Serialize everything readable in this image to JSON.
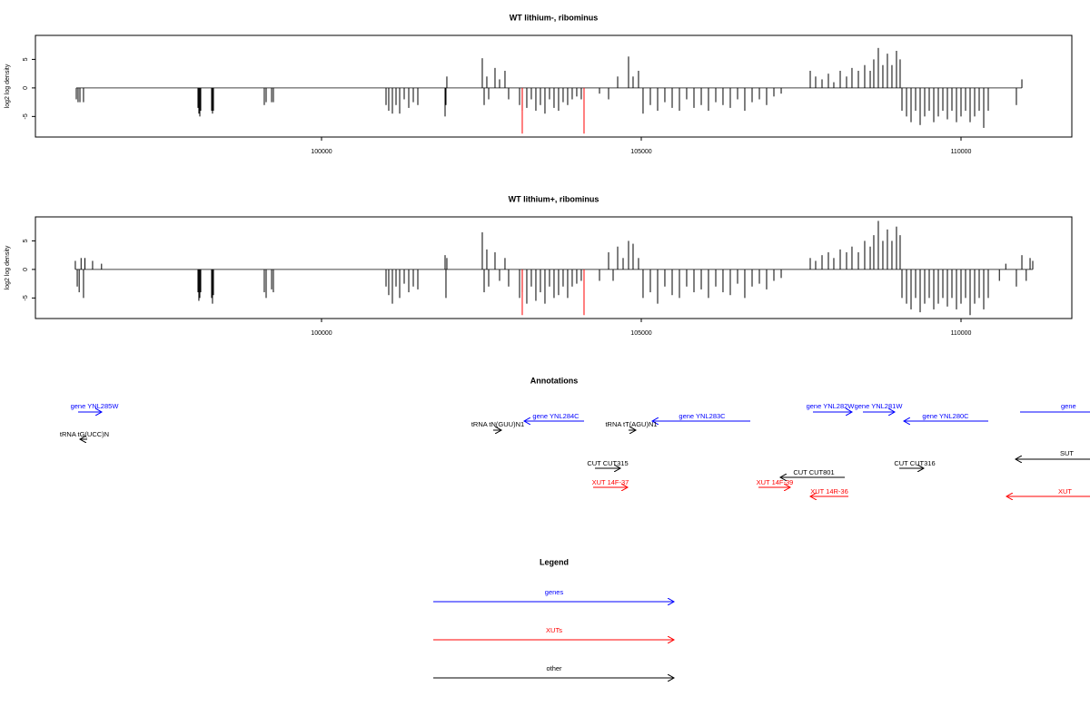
{
  "chart_data": [
    {
      "type": "bar",
      "title": "WT lithium-, ribominus",
      "y_label": "log2 log density",
      "xlim": [
        95526,
        111733
      ],
      "ylim": [
        -8.6,
        9.2
      ],
      "xticks": [
        100000,
        105000,
        110000
      ],
      "yticks": [
        -5,
        0,
        5
      ],
      "series": [
        {
          "color": "#000000",
          "x": [
            96165,
            96193,
            96222,
            96278,
            98068,
            98082,
            98097,
            98111,
            98281,
            98295,
            98310,
            99105,
            99134,
            99219,
            99247,
            101009,
            101051,
            101108,
            101165,
            101222,
            101293,
            101364,
            101435,
            101506,
            101932,
            101946,
            101960,
            102514,
            102543,
            102585,
            102614,
            102713,
            102784,
            102869,
            102926,
            103097,
            103139,
            103210,
            103281,
            103352,
            103423,
            103494,
            103565,
            103636,
            103707,
            103778,
            103849,
            103920,
            103991,
            104062,
            104347,
            104489,
            104631,
            104801,
            104872,
            104957,
            105028,
            105142,
            105256,
            105369,
            105483,
            105597,
            105710,
            105824,
            105938,
            106051,
            106165,
            106278,
            106392,
            106506,
            106619,
            106733,
            106847,
            106960,
            107074,
            107188,
            107642,
            107727,
            107827,
            107926,
            108011,
            108111,
            108210,
            108295,
            108395,
            108494,
            108580,
            108636,
            108707,
            108778,
            108849,
            108920,
            108991,
            109048,
            109077,
            109148,
            109219,
            109290,
            109361,
            109432,
            109503,
            109574,
            109645,
            109716,
            109787,
            109858,
            109929,
            110000,
            110071,
            110142,
            110213,
            110284,
            110355,
            110426,
            110866,
            110952
          ],
          "values": [
            -2,
            -2.5,
            -2.5,
            -2.5,
            -3.5,
            -4.5,
            -5,
            -4,
            -4,
            -4.5,
            -4,
            -3,
            -2.5,
            -2.5,
            -2.5,
            -3,
            -4,
            -4.5,
            -3,
            -4.5,
            -2,
            -3.5,
            -2.5,
            -3,
            -5,
            -3,
            2,
            5.2,
            -3,
            2,
            -2,
            3.5,
            1.5,
            3,
            -2,
            -3,
            -4,
            -3.5,
            -2,
            -4,
            -3,
            -4.5,
            -2,
            -3.5,
            -4,
            -2.5,
            -3,
            -2,
            -1.5,
            -2,
            -1,
            -2,
            2,
            5.5,
            2,
            3,
            -4.5,
            -3,
            -4,
            -2.5,
            -3.5,
            -4,
            -2,
            -3.5,
            -3,
            -4,
            -2.5,
            -3,
            -3.5,
            -2,
            -4,
            -2.5,
            -2,
            -3,
            -1.5,
            -1,
            3,
            2,
            1.5,
            2.5,
            1,
            3,
            2,
            3.5,
            3,
            4,
            3,
            5,
            7,
            4,
            6,
            4,
            6.5,
            5,
            -4,
            -5,
            -6,
            -4,
            -6.5,
            -5,
            -4,
            -6,
            -5,
            -4,
            -5.5,
            -4,
            -6,
            -5,
            -4,
            -6,
            -5,
            -4,
            -7,
            -4,
            -3,
            1.5
          ]
        },
        {
          "color": "#ff0000",
          "x": [
            103139,
            104105
          ],
          "values": [
            -8,
            -8
          ]
        }
      ]
    },
    {
      "type": "bar",
      "title": "WT lithium+, ribominus",
      "y_label": "log2 log density",
      "xlim": [
        95526,
        111733
      ],
      "ylim": [
        -8.6,
        9.2
      ],
      "xticks": [
        100000,
        105000,
        110000
      ],
      "yticks": [
        -5,
        0,
        5
      ],
      "series": [
        {
          "color": "#000000",
          "x": [
            96150,
            96180,
            96210,
            96240,
            96278,
            96300,
            96420,
            96560,
            98068,
            98082,
            98097,
            98111,
            98281,
            98295,
            98310,
            99105,
            99134,
            99219,
            99247,
            101009,
            101051,
            101108,
            101165,
            101222,
            101293,
            101364,
            101435,
            101506,
            101932,
            101946,
            101960,
            102514,
            102543,
            102585,
            102614,
            102713,
            102784,
            102869,
            102926,
            103097,
            103139,
            103210,
            103281,
            103352,
            103423,
            103494,
            103565,
            103636,
            103707,
            103778,
            103849,
            103920,
            103991,
            104062,
            104347,
            104489,
            104560,
            104631,
            104716,
            104801,
            104872,
            104957,
            105028,
            105142,
            105256,
            105369,
            105483,
            105597,
            105710,
            105824,
            105938,
            106051,
            106165,
            106278,
            106392,
            106506,
            106619,
            106733,
            106847,
            106960,
            107074,
            107188,
            107642,
            107727,
            107827,
            107926,
            108011,
            108111,
            108210,
            108295,
            108395,
            108494,
            108580,
            108636,
            108707,
            108778,
            108849,
            108920,
            108991,
            109048,
            109077,
            109148,
            109219,
            109290,
            109361,
            109432,
            109503,
            109574,
            109645,
            109716,
            109787,
            109858,
            109929,
            110000,
            110071,
            110142,
            110213,
            110284,
            110355,
            110426,
            110600,
            110700,
            110866,
            110952,
            111020,
            111080,
            111122
          ],
          "values": [
            1.5,
            -3,
            -4,
            2,
            -5,
            2,
            1.5,
            1,
            -4,
            -5.5,
            -5,
            -4,
            -5,
            -6,
            -4.5,
            -4,
            -5,
            -3.5,
            -4,
            -3,
            -4.5,
            -6,
            -3,
            -5,
            -2.5,
            -4,
            -3,
            -3.5,
            2.5,
            -5,
            2,
            6.5,
            -4,
            3.5,
            -3,
            3,
            -2,
            2,
            -3,
            -5,
            -4,
            -6,
            -3,
            -5.5,
            -4,
            -6,
            -3,
            -5,
            -4.5,
            -3,
            -5,
            -3,
            -2.5,
            -2,
            -2,
            3,
            -2,
            4,
            2,
            5,
            4.5,
            2,
            -5,
            -4,
            -6,
            -3,
            -4.5,
            -5,
            -3,
            -4,
            -3.5,
            -5,
            -3,
            -4,
            -4.5,
            -2.5,
            -5,
            -3,
            -2.5,
            -3.5,
            -2,
            -1.5,
            2,
            1.5,
            2.5,
            3,
            2,
            3.5,
            3,
            4,
            3,
            5,
            4,
            6,
            8.5,
            5,
            7,
            5,
            7.5,
            6,
            -5,
            -6,
            -7,
            -5,
            -7.5,
            -6,
            -5,
            -7,
            -6,
            -5,
            -6.5,
            -5,
            -7,
            -6,
            -5,
            -8,
            -6,
            -5,
            -7,
            -5,
            -2,
            1,
            -3,
            2.5,
            -2,
            2,
            1.5
          ]
        },
        {
          "color": "#ff0000",
          "x": [
            103139,
            104105
          ],
          "values": [
            -8,
            -8
          ]
        }
      ]
    }
  ],
  "annotations": {
    "title": "Annotations",
    "items": [
      "gene YNL285W",
      "tRNA tG(UCC)N",
      "tRNA tN(GUU)N1",
      "gene YNL284C",
      "tRNA tT(AGU)N1",
      "gene YNL283C",
      "gene YNL282W",
      "gene YNL281W",
      "gene YNL280C",
      "gene",
      "CUT CUT315",
      "CUT CUT801",
      "CUT CUT316",
      "SUT",
      "XUT 14F-37",
      "XUT 14F-39",
      "XUT 14R-36",
      "XUT"
    ]
  },
  "legend": {
    "title": "Legend",
    "entries": [
      "genes",
      "XUTs",
      "other"
    ]
  }
}
